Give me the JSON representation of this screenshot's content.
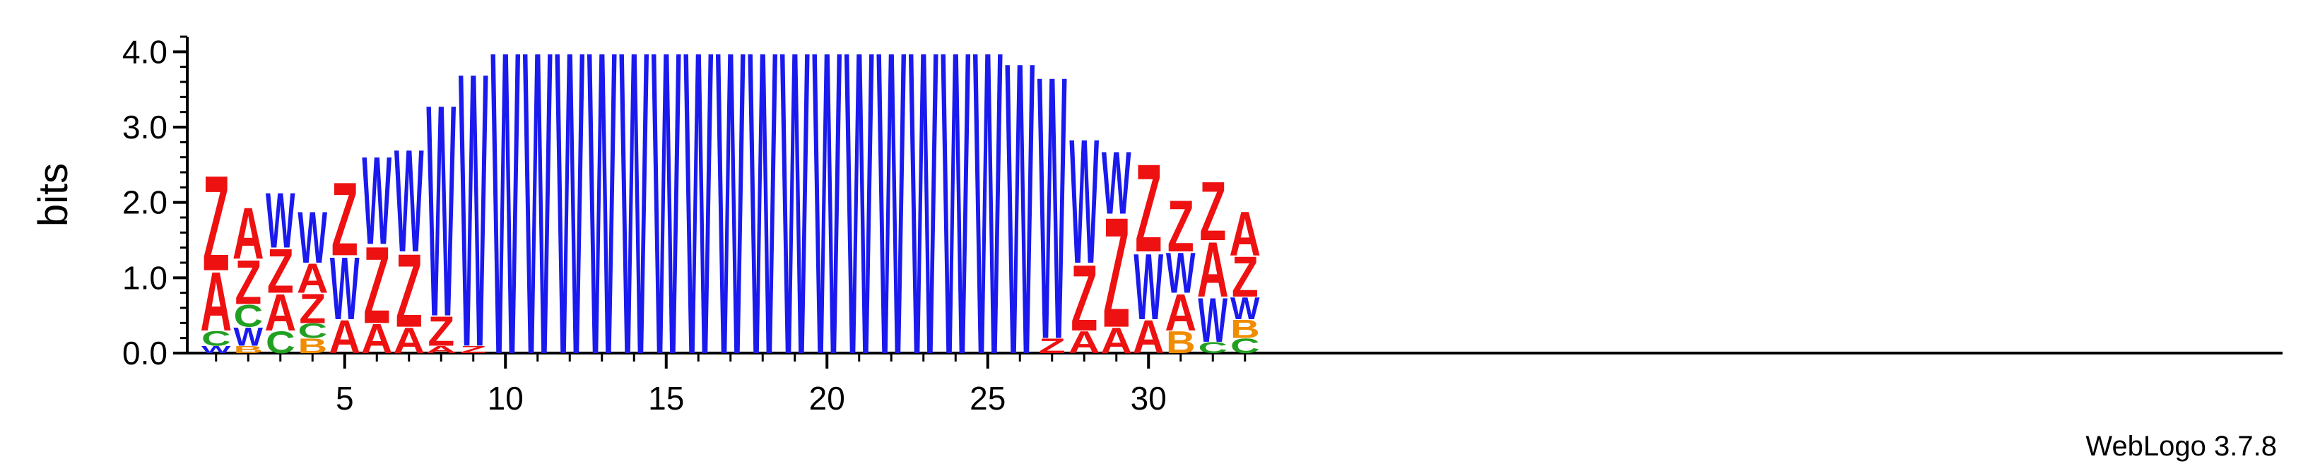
{
  "chart_data": {
    "type": "sequence_logo",
    "ylabel": "bits",
    "ylim": [
      0,
      4.2
    ],
    "y_ticks": [
      "0.0",
      "1.0",
      "2.0",
      "3.0",
      "4.0"
    ],
    "x_ticks": [
      "5",
      "10",
      "15",
      "20",
      "25",
      "30"
    ],
    "x_tick_values": [
      5,
      10,
      15,
      20,
      25,
      30
    ],
    "positions": 33,
    "footer": "WebLogo 3.7.8",
    "colors": {
      "Z": "#ee1111",
      "A": "#ee1111",
      "W": "#1a1aee",
      "C": "#22a022",
      "B": "#f08c00"
    },
    "columns": [
      [
        {
          "l": "W",
          "h": 0.1
        },
        {
          "l": "C",
          "h": 0.2
        },
        {
          "l": "A",
          "h": 0.8
        },
        {
          "l": "Z",
          "h": 1.3
        }
      ],
      [
        {
          "l": "B",
          "h": 0.1
        },
        {
          "l": "W",
          "h": 0.25
        },
        {
          "l": "C",
          "h": 0.3
        },
        {
          "l": "Z",
          "h": 0.6
        },
        {
          "l": "A",
          "h": 0.7
        }
      ],
      [
        {
          "l": "C",
          "h": 0.3
        },
        {
          "l": "A",
          "h": 0.5
        },
        {
          "l": "Z",
          "h": 0.6
        },
        {
          "l": "W",
          "h": 0.75
        }
      ],
      [
        {
          "l": "B",
          "h": 0.2
        },
        {
          "l": "C",
          "h": 0.2
        },
        {
          "l": "Z",
          "h": 0.4
        },
        {
          "l": "A",
          "h": 0.4
        },
        {
          "l": "W",
          "h": 0.7
        }
      ],
      [
        {
          "l": "A",
          "h": 0.45
        },
        {
          "l": "W",
          "h": 0.85
        },
        {
          "l": "Z",
          "h": 1.0
        }
      ],
      [
        {
          "l": "A",
          "h": 0.4
        },
        {
          "l": "Z",
          "h": 1.05
        },
        {
          "l": "W",
          "h": 1.2
        }
      ],
      [
        {
          "l": "A",
          "h": 0.35
        },
        {
          "l": "Z",
          "h": 1.0
        },
        {
          "l": "W",
          "h": 1.4
        }
      ],
      [
        {
          "l": "A",
          "h": 0.1
        },
        {
          "l": "Z",
          "h": 0.4
        },
        {
          "l": "W",
          "h": 2.9
        }
      ],
      [
        {
          "l": "Z",
          "h": 0.1
        },
        {
          "l": "W",
          "h": 3.75
        }
      ],
      [
        {
          "l": "W",
          "h": 4.15
        }
      ],
      [
        {
          "l": "W",
          "h": 4.15
        }
      ],
      [
        {
          "l": "W",
          "h": 4.15
        }
      ],
      [
        {
          "l": "W",
          "h": 4.15
        }
      ],
      [
        {
          "l": "W",
          "h": 4.15
        }
      ],
      [
        {
          "l": "W",
          "h": 4.15
        }
      ],
      [
        {
          "l": "W",
          "h": 4.15
        }
      ],
      [
        {
          "l": "W",
          "h": 4.15
        }
      ],
      [
        {
          "l": "W",
          "h": 4.15
        }
      ],
      [
        {
          "l": "W",
          "h": 4.15
        }
      ],
      [
        {
          "l": "W",
          "h": 4.15
        }
      ],
      [
        {
          "l": "W",
          "h": 4.15
        }
      ],
      [
        {
          "l": "W",
          "h": 4.15
        }
      ],
      [
        {
          "l": "W",
          "h": 4.15
        }
      ],
      [
        {
          "l": "W",
          "h": 4.15
        }
      ],
      [
        {
          "l": "W",
          "h": 4.15
        }
      ],
      [
        {
          "l": "W",
          "h": 4.0
        }
      ],
      [
        {
          "l": "Z",
          "h": 0.2
        },
        {
          "l": "W",
          "h": 3.6
        }
      ],
      [
        {
          "l": "A",
          "h": 0.3
        },
        {
          "l": "Z",
          "h": 0.9
        },
        {
          "l": "W",
          "h": 1.7
        }
      ],
      [
        {
          "l": "A",
          "h": 0.35
        },
        {
          "l": "Z",
          "h": 1.5
        },
        {
          "l": "W",
          "h": 0.85
        }
      ],
      [
        {
          "l": "A",
          "h": 0.45
        },
        {
          "l": "W",
          "h": 0.9
        },
        {
          "l": "Z",
          "h": 1.2
        }
      ],
      [
        {
          "l": "B",
          "h": 0.3
        },
        {
          "l": "A",
          "h": 0.5
        },
        {
          "l": "W",
          "h": 0.55
        },
        {
          "l": "Z",
          "h": 0.7
        }
      ],
      [
        {
          "l": "C",
          "h": 0.15
        },
        {
          "l": "W",
          "h": 0.6
        },
        {
          "l": "A",
          "h": 0.75
        },
        {
          "l": "Z",
          "h": 0.8
        }
      ],
      [
        {
          "l": "C",
          "h": 0.2
        },
        {
          "l": "B",
          "h": 0.25
        },
        {
          "l": "W",
          "h": 0.3
        },
        {
          "l": "Z",
          "h": 0.55
        },
        {
          "l": "A",
          "h": 0.6
        }
      ]
    ]
  }
}
